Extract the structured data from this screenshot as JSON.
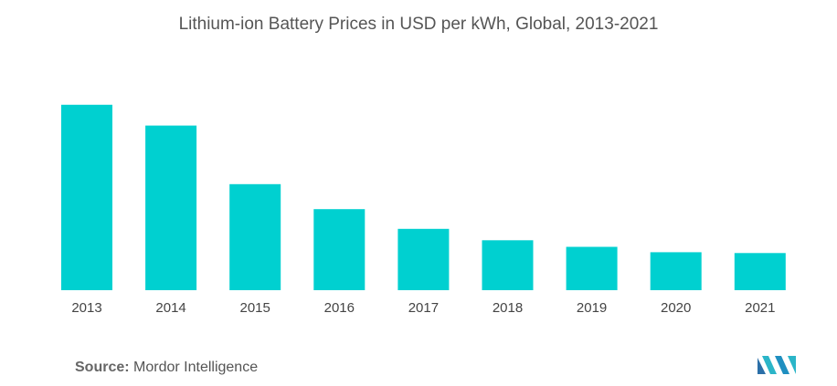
{
  "title": "Lithium-ion Battery Prices in USD per kWh, Global, 2013-2021",
  "chart_data": {
    "type": "bar",
    "title": "Lithium-ion Battery Prices in USD per kWh, Global, 2013-2021",
    "categories": [
      "2013",
      "2014",
      "2015",
      "2016",
      "2017",
      "2018",
      "2019",
      "2020",
      "2021"
    ],
    "values": [
      684,
      607,
      391,
      299,
      226,
      184,
      160,
      140,
      137
    ],
    "xlabel": "",
    "ylabel": "",
    "ylim": [
      0,
      700
    ],
    "grid": false,
    "legend": "none",
    "bar_color": "#00d0d0"
  },
  "footer": {
    "source_label": "Source:",
    "source_text": "Mordor Intelligence"
  },
  "logo": {
    "icon": "mordor-intelligence-logo",
    "color": "#2b9fc0"
  }
}
